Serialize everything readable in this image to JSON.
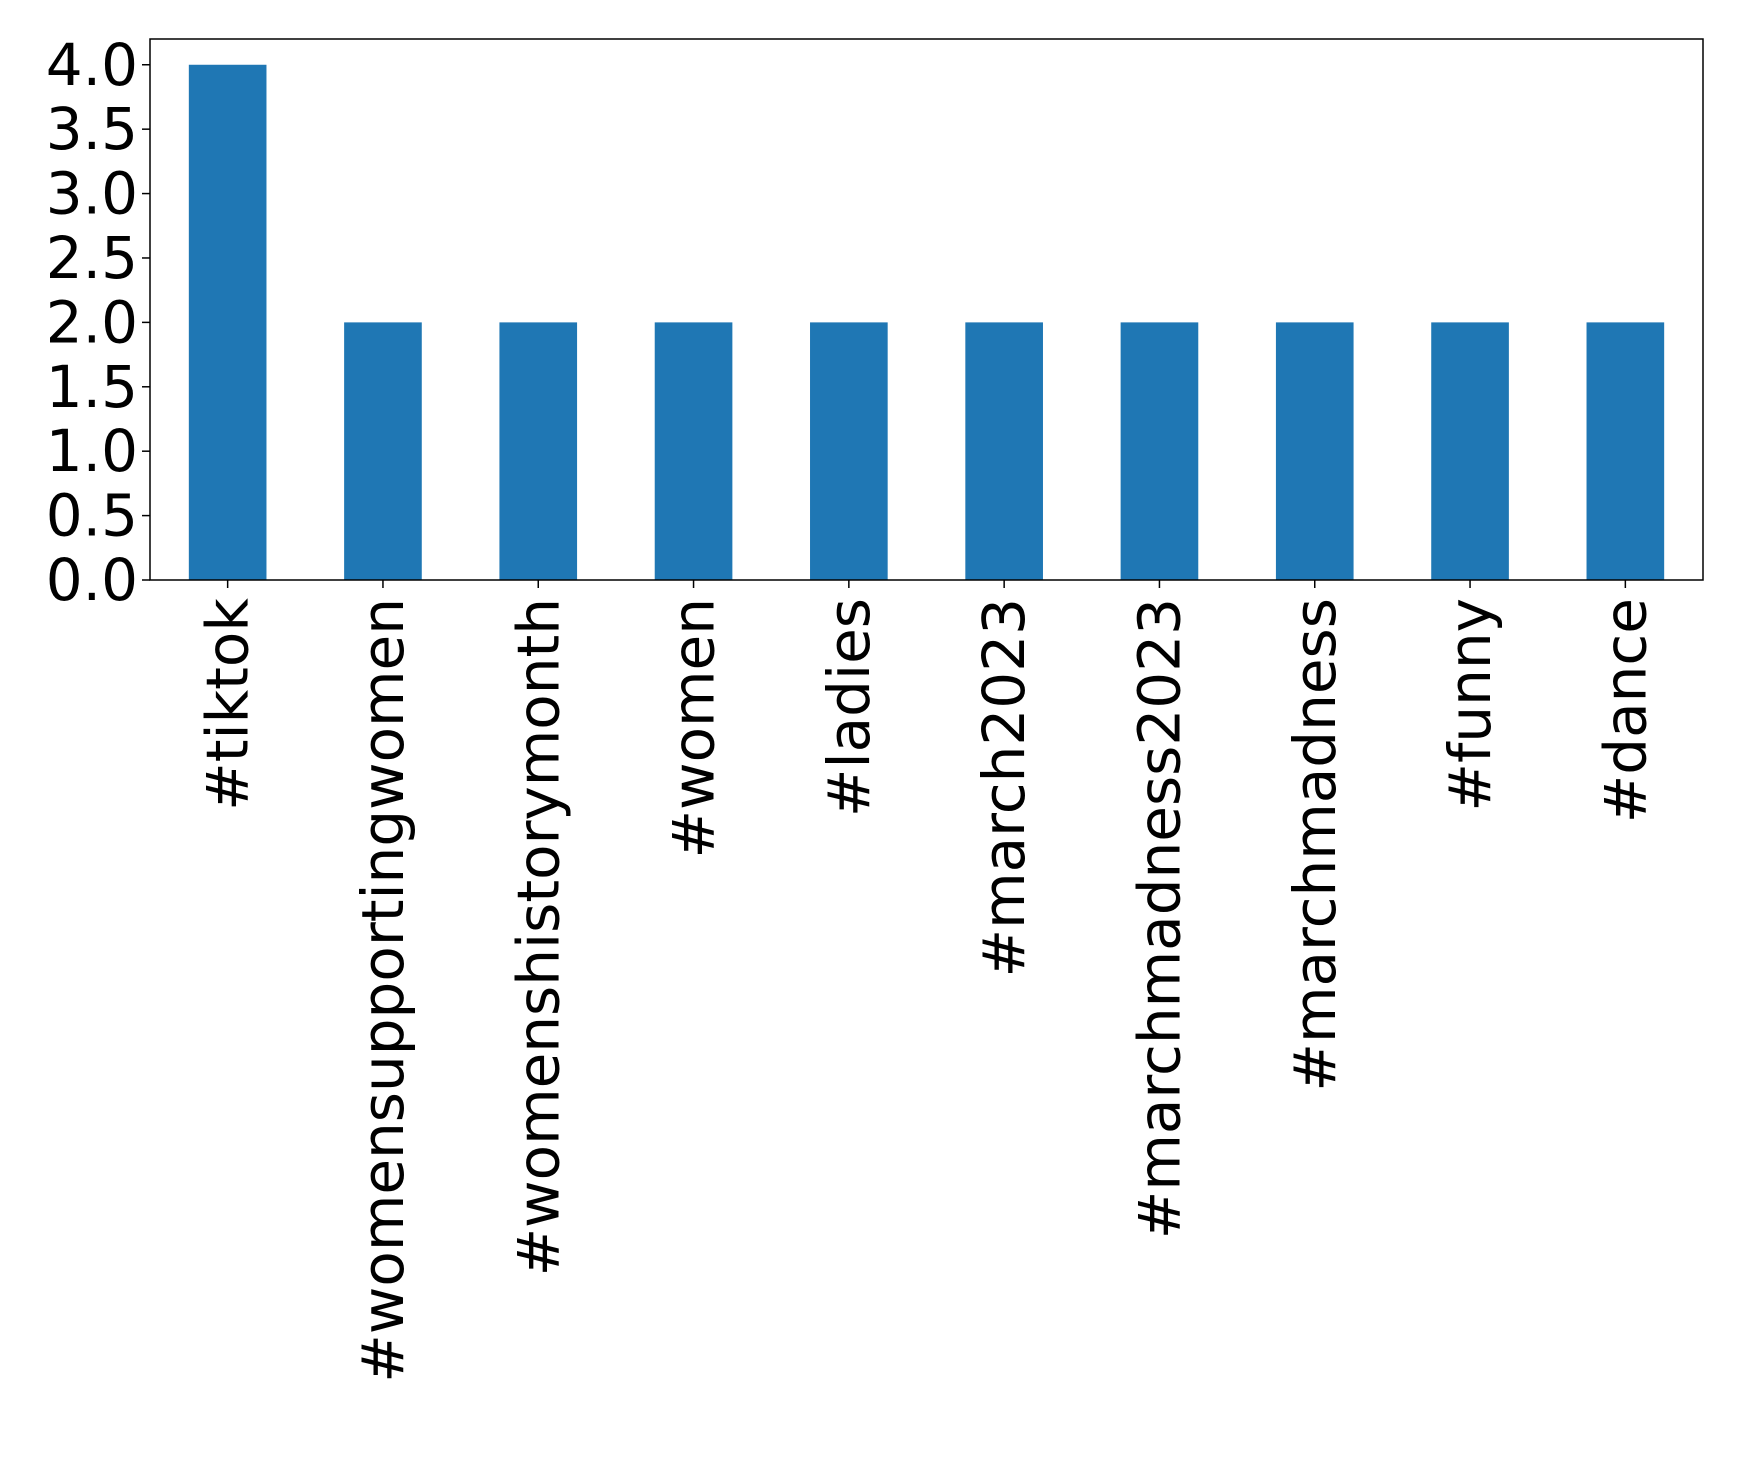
{
  "chart_data": {
    "type": "bar",
    "title": "",
    "xlabel": "",
    "ylabel": "",
    "categories": [
      "#tiktok",
      "#womensupportingwomen",
      "#womenshistorymonth",
      "#women",
      "#ladies",
      "#march2023",
      "#marchmadness2023",
      "#marchmadness",
      "#funny",
      "#dance"
    ],
    "values": [
      4,
      2,
      2,
      2,
      2,
      2,
      2,
      2,
      2,
      2
    ],
    "ylim": [
      0,
      4.2
    ],
    "yticks": [
      "0.0",
      "0.5",
      "1.0",
      "1.5",
      "2.0",
      "2.5",
      "3.0",
      "3.5",
      "4.0"
    ],
    "grid": false,
    "legend": "none",
    "bar_color": "#1f77b4"
  }
}
